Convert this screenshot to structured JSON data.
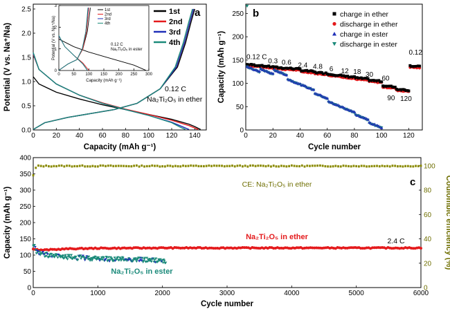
{
  "chart_data": [
    {
      "panel": "a",
      "type": "line",
      "xlabel": "Capacity (mAh g⁻¹)",
      "ylabel": "Potential (V vs. Na⁺/Na)",
      "xlim": [
        0,
        150
      ],
      "ylim": [
        0,
        2.6
      ],
      "xticks": [
        0,
        20,
        40,
        60,
        80,
        100,
        120,
        140
      ],
      "yticks": [
        0.0,
        0.5,
        1.0,
        1.5,
        2.0,
        2.5
      ],
      "annotation": [
        "0.12 C",
        "Na₂Ti₂O₅ in ether"
      ],
      "legend": [
        "1st",
        "2nd",
        "3rd",
        "4th"
      ],
      "colors": [
        "#000000",
        "#e41a1c",
        "#1f2fb8",
        "#1b8a7a"
      ],
      "series": [
        {
          "name": "1st",
          "discharge": {
            "x": [
              0,
              5,
              20,
              40,
              60,
              80,
              100,
              120,
              135,
              140,
              145
            ],
            "y": [
              1.1,
              0.95,
              0.78,
              0.64,
              0.52,
              0.42,
              0.32,
              0.22,
              0.12,
              0.07,
              0.01
            ]
          },
          "charge": {
            "x": [
              0,
              10,
              30,
              50,
              70,
              90,
              110,
              125,
              132,
              137,
              140
            ],
            "y": [
              0.01,
              0.15,
              0.26,
              0.34,
              0.42,
              0.55,
              0.85,
              1.3,
              1.8,
              2.25,
              2.5
            ]
          }
        },
        {
          "name": "2nd",
          "discharge": {
            "x": [
              0,
              5,
              20,
              40,
              60,
              80,
              100,
              120,
              135,
              140,
              143
            ],
            "y": [
              1.56,
              1.25,
              0.95,
              0.72,
              0.56,
              0.43,
              0.32,
              0.2,
              0.09,
              0.04,
              0.01
            ]
          },
          "charge": {
            "x": [
              0,
              10,
              30,
              50,
              70,
              90,
              110,
              124,
              131,
              136,
              139
            ],
            "y": [
              0.01,
              0.15,
              0.26,
              0.34,
              0.42,
              0.55,
              0.85,
              1.3,
              1.8,
              2.25,
              2.5
            ]
          }
        },
        {
          "name": "3rd",
          "discharge": {
            "x": [
              0,
              5,
              20,
              40,
              60,
              80,
              100,
              120,
              130,
              135
            ],
            "y": [
              1.58,
              1.25,
              0.95,
              0.72,
              0.55,
              0.42,
              0.3,
              0.16,
              0.06,
              0.01
            ]
          },
          "charge": {
            "x": [
              0,
              10,
              30,
              50,
              70,
              90,
              110,
              124,
              131,
              136,
              139
            ],
            "y": [
              0.01,
              0.15,
              0.26,
              0.34,
              0.42,
              0.55,
              0.85,
              1.3,
              1.8,
              2.25,
              2.5
            ]
          }
        },
        {
          "name": "4th",
          "discharge": {
            "x": [
              0,
              5,
              20,
              40,
              60,
              80,
              100,
              120,
              128,
              132
            ],
            "y": [
              1.6,
              1.25,
              0.95,
              0.72,
              0.55,
              0.42,
              0.3,
              0.15,
              0.05,
              0.01
            ]
          },
          "charge": {
            "x": [
              0,
              10,
              30,
              50,
              70,
              90,
              110,
              123,
              130,
              135,
              138
            ],
            "y": [
              0.01,
              0.15,
              0.26,
              0.34,
              0.42,
              0.55,
              0.85,
              1.3,
              1.8,
              2.25,
              2.5
            ]
          }
        }
      ],
      "inset": {
        "xlabel": "Capacity (mAh g⁻¹)",
        "ylabel": "Potential (V vs. Na⁺/Na)",
        "xlim": [
          0,
          300
        ],
        "ylim": [
          0,
          3.0
        ],
        "xticks": [
          0,
          50,
          100,
          150,
          200,
          250,
          300
        ],
        "yticks": [
          0,
          1,
          2,
          3
        ],
        "annotation": [
          "0.12 C",
          "Na₂Ti₂O₅ in ester"
        ],
        "legend": [
          "1st",
          "2nd",
          "3rd",
          "4th"
        ],
        "series": [
          {
            "name": "1st",
            "discharge": {
              "x": [
                0,
                50,
                100,
                150,
                200,
                250,
                290
              ],
              "y": [
                1.45,
                1.1,
                0.85,
                0.65,
                0.45,
                0.25,
                0.01
              ]
            },
            "charge": {
              "x": [
                0,
                30,
                60,
                80,
                95,
                105
              ],
              "y": [
                0.01,
                0.3,
                0.5,
                1.0,
                1.8,
                2.9
              ]
            }
          },
          {
            "name": "2nd",
            "discharge": {
              "x": [
                0,
                20,
                50,
                80,
                100
              ],
              "y": [
                1.6,
                1.1,
                0.7,
                0.35,
                0.01
              ]
            },
            "charge": {
              "x": [
                0,
                30,
                60,
                80,
                92,
                100
              ],
              "y": [
                0.01,
                0.3,
                0.5,
                1.0,
                1.8,
                2.9
              ]
            }
          },
          {
            "name": "3rd",
            "discharge": {
              "x": [
                0,
                20,
                50,
                80,
                95
              ],
              "y": [
                1.6,
                1.1,
                0.7,
                0.3,
                0.01
              ]
            },
            "charge": {
              "x": [
                0,
                30,
                60,
                78,
                90,
                98
              ],
              "y": [
                0.01,
                0.3,
                0.5,
                1.0,
                1.8,
                2.9
              ]
            }
          },
          {
            "name": "4th",
            "discharge": {
              "x": [
                0,
                20,
                50,
                80,
                95
              ],
              "y": [
                1.62,
                1.1,
                0.7,
                0.3,
                0.01
              ]
            },
            "charge": {
              "x": [
                0,
                30,
                60,
                78,
                90,
                97
              ],
              "y": [
                0.01,
                0.3,
                0.5,
                1.0,
                1.8,
                2.9
              ]
            }
          }
        ]
      }
    },
    {
      "panel": "b",
      "type": "scatter",
      "xlabel": "Cycle number",
      "ylabel": "Capacity (mAh g⁻¹)",
      "xlim": [
        0,
        130
      ],
      "ylim": [
        0,
        270
      ],
      "xticks": [
        0,
        20,
        40,
        60,
        80,
        100,
        120
      ],
      "yticks": [
        0,
        50,
        100,
        150,
        200,
        250
      ],
      "rate_labels": [
        {
          "text": "0.12 C",
          "x": 8,
          "y": 152
        },
        {
          "text": "0.3",
          "x": 20,
          "y": 143
        },
        {
          "text": "0.6",
          "x": 30,
          "y": 140
        },
        {
          "text": "2.4",
          "x": 42,
          "y": 134
        },
        {
          "text": "4.8",
          "x": 53,
          "y": 131
        },
        {
          "text": "6",
          "x": 63,
          "y": 126
        },
        {
          "text": "12",
          "x": 73,
          "y": 122
        },
        {
          "text": "18",
          "x": 82,
          "y": 120
        },
        {
          "text": "30",
          "x": 91,
          "y": 114
        },
        {
          "text": "60",
          "x": 103,
          "y": 106
        },
        {
          "text": "90",
          "x": 107,
          "y": 64
        },
        {
          "text": "120",
          "x": 118,
          "y": 62
        },
        {
          "text": "0.12",
          "x": 125,
          "y": 162
        }
      ],
      "legend": [
        "charge in ether",
        "discharge in ether",
        "charge in ester",
        "discharge in ester"
      ],
      "colors": [
        "#000000",
        "#e41a1c",
        "#1f2fb8",
        "#1b8a7a"
      ],
      "ether_segments": [
        [
          1,
          10,
          138
        ],
        [
          11,
          20,
          135
        ],
        [
          21,
          30,
          132
        ],
        [
          31,
          40,
          130
        ],
        [
          41,
          50,
          125
        ],
        [
          51,
          60,
          121
        ],
        [
          61,
          70,
          117
        ],
        [
          71,
          80,
          113
        ],
        [
          81,
          90,
          109
        ],
        [
          91,
          100,
          104
        ],
        [
          101,
          110,
          92
        ],
        [
          111,
          120,
          85
        ],
        [
          121,
          128,
          135
        ]
      ],
      "ester_segments": [
        [
          1,
          10,
          135
        ],
        [
          11,
          20,
          130
        ],
        [
          21,
          30,
          128
        ],
        [
          31,
          40,
          108
        ],
        [
          41,
          50,
          96
        ],
        [
          51,
          60,
          78
        ],
        [
          61,
          70,
          60
        ],
        [
          71,
          80,
          48
        ],
        [
          81,
          90,
          32
        ],
        [
          91,
          100,
          15
        ]
      ],
      "first_cycle_discharge_ester": 266
    },
    {
      "panel": "c",
      "type": "scatter",
      "xlabel": "Cycle number",
      "ylabel": "Capacity (mAh g⁻¹)",
      "y2label": "Coulombic efficiency (%)",
      "xlim": [
        0,
        6000
      ],
      "ylim": [
        0,
        400
      ],
      "y2lim": [
        0,
        106.7
      ],
      "xticks": [
        0,
        1000,
        2000,
        3000,
        4000,
        5000,
        6000
      ],
      "yticks": [
        0,
        50,
        100,
        150,
        200,
        250,
        300,
        350,
        400
      ],
      "y2ticks": [
        0,
        20,
        40,
        60,
        80,
        100
      ],
      "annotations": [
        "CE: Na₂Ti₂O₅ in ether",
        "Na₂Ti₂O₅ in ether",
        "2.4 C",
        "Na₂Ti₂O₅ in ester"
      ],
      "ce_ether": {
        "x": [
          0,
          50,
          6000
        ],
        "y": [
          92,
          99.8,
          99.8
        ]
      },
      "capacity_ether": {
        "x": [
          0,
          100,
          500,
          1000,
          2000,
          3000,
          4000,
          5000,
          6000
        ],
        "y": [
          120,
          115,
          119,
          121,
          122,
          122,
          122,
          122,
          122
        ]
      },
      "capacity_ester": {
        "x": [
          0,
          50,
          150,
          300,
          600,
          1000,
          1400,
          1800,
          2050
        ],
        "y": [
          135,
          112,
          103,
          97,
          93,
          89,
          87,
          85,
          82
        ]
      }
    }
  ],
  "panel_letters": {
    "a": "a",
    "b": "b",
    "c": "c"
  }
}
